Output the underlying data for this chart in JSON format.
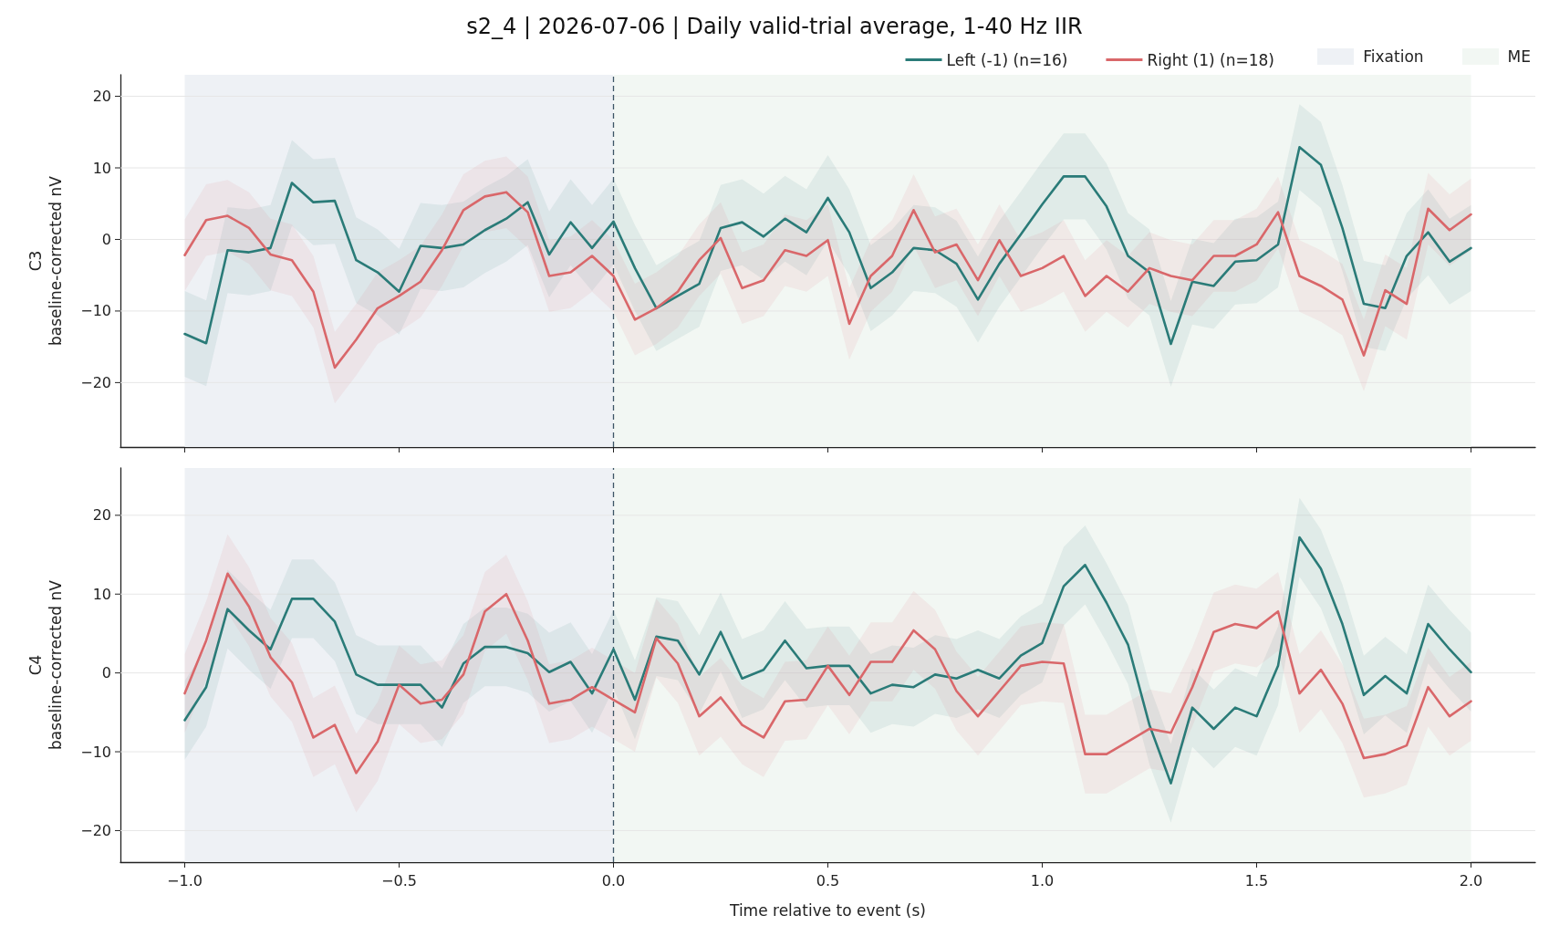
{
  "chart_data": [
    {
      "type": "line",
      "title": "s2_4 | 2026-07-06 | Daily valid-trial average, 1-40 Hz IIR",
      "ylabel": "C3\nbaseline-corrected nV",
      "x": [
        -1,
        -0.95,
        -0.9,
        -0.85,
        -0.8,
        -0.75,
        -0.7,
        -0.65,
        -0.6,
        -0.55,
        -0.5,
        -0.45,
        -0.4,
        -0.35,
        -0.3,
        -0.25,
        -0.2,
        -0.15,
        -0.1,
        -0.05,
        0,
        0.05,
        0.1,
        0.15,
        0.2,
        0.25,
        0.3,
        0.35,
        0.4,
        0.45,
        0.5,
        0.55,
        0.6,
        0.65,
        0.7,
        0.75,
        0.8,
        0.85,
        0.9,
        0.95,
        1,
        1.05,
        1.1,
        1.15,
        1.2,
        1.25,
        1.3,
        1.35,
        1.4,
        1.45,
        1.5,
        1.55,
        1.6,
        1.65,
        1.7,
        1.75,
        1.8,
        1.85,
        1.9,
        1.95,
        2
      ],
      "series": [
        {
          "name": "Left (-1) (n=16)",
          "color": "#2a7b78",
          "values": [
            -13.2,
            -14.5,
            -1.5,
            -1.8,
            -1.2,
            7.9,
            5.2,
            5.4,
            -2.9,
            -4.6,
            -7.3,
            -0.9,
            -1.2,
            -0.7,
            1.3,
            2.9,
            5.2,
            -2.1,
            2.4,
            -1.2,
            2.5,
            -4.0,
            -9.6,
            -7.9,
            -6.2,
            1.6,
            2.4,
            0.4,
            2.9,
            1.0,
            5.8,
            1.0,
            -6.8,
            -4.6,
            -1.2,
            -1.5,
            -3.4,
            -8.4,
            -3.4,
            0.7,
            4.9,
            8.8,
            8.8,
            4.6,
            -2.3,
            -4.6,
            -14.6,
            -5.9,
            -6.5,
            -3.1,
            -2.9,
            -0.7,
            12.9,
            10.4,
            1.6,
            -9.0,
            -9.6,
            -2.3,
            1.0,
            -3.1,
            -1.2
          ],
          "lower": [
            -19.2,
            -20.5,
            -7.5,
            -7.8,
            -7.2,
            1.9,
            -0.8,
            -0.6,
            -8.9,
            -10.6,
            -13.3,
            -6.9,
            -7.2,
            -6.7,
            -4.7,
            -3.1,
            -0.8,
            -8.1,
            -3.6,
            -7.2,
            -3.5,
            -10.0,
            -15.6,
            -13.9,
            -12.2,
            -4.4,
            -3.6,
            -5.6,
            -3.1,
            -5.0,
            -0.2,
            -5.0,
            -12.8,
            -10.6,
            -7.2,
            -7.5,
            -9.4,
            -14.4,
            -9.4,
            -5.3,
            -1.1,
            2.8,
            2.8,
            -1.4,
            -8.3,
            -10.6,
            -20.6,
            -11.9,
            -12.5,
            -9.1,
            -8.9,
            -6.7,
            6.9,
            4.4,
            -4.4,
            -15.0,
            -15.6,
            -8.3,
            -5.0,
            -9.1,
            -7.2
          ],
          "upper": [
            -7.2,
            -8.5,
            4.5,
            4.2,
            4.8,
            13.9,
            11.2,
            11.4,
            3.1,
            1.4,
            -1.3,
            5.1,
            4.8,
            5.3,
            7.3,
            8.9,
            11.2,
            3.9,
            8.4,
            4.8,
            8.5,
            2.0,
            -3.6,
            -1.9,
            -0.2,
            7.6,
            8.4,
            6.4,
            8.9,
            7.0,
            11.8,
            7.0,
            -0.8,
            1.4,
            4.8,
            4.5,
            2.6,
            -2.4,
            2.6,
            6.7,
            10.9,
            14.8,
            14.8,
            10.6,
            3.7,
            1.4,
            -8.6,
            0.1,
            -0.5,
            2.9,
            3.1,
            5.3,
            18.9,
            16.4,
            7.6,
            -3.0,
            -3.6,
            3.7,
            7.0,
            2.9,
            4.8
          ]
        },
        {
          "name": "Right (1) (n=18)",
          "color": "#d9676a",
          "values": [
            -2.2,
            2.7,
            3.3,
            1.6,
            -2.1,
            -2.9,
            -7.3,
            -17.9,
            -14.0,
            -9.6,
            -7.9,
            -5.9,
            -1.5,
            4.1,
            6.0,
            6.6,
            3.8,
            -5.1,
            -4.6,
            -2.3,
            -5.1,
            -11.2,
            -9.6,
            -7.3,
            -2.9,
            0.2,
            -6.8,
            -5.7,
            -1.5,
            -2.3,
            -0.1,
            -11.8,
            -5.1,
            -2.3,
            4.1,
            -1.8,
            -0.7,
            -5.7,
            -0.1,
            -5.1,
            -4.0,
            -2.3,
            -7.9,
            -5.1,
            -7.3,
            -4.0,
            -5.1,
            -5.7,
            -2.3,
            -2.3,
            -0.7,
            3.8,
            -5.1,
            -6.5,
            -8.4,
            -16.2,
            -7.1,
            -9.0,
            4.3,
            1.3,
            3.5
          ],
          "lower": [
            -7.2,
            -2.3,
            -1.7,
            -3.4,
            -7.1,
            -7.9,
            -12.3,
            -22.9,
            -19.0,
            -14.6,
            -12.9,
            -10.9,
            -6.5,
            -0.9,
            1.0,
            1.6,
            -1.2,
            -10.1,
            -9.6,
            -7.3,
            -10.1,
            -16.2,
            -14.6,
            -12.3,
            -7.9,
            -4.8,
            -11.8,
            -10.7,
            -6.5,
            -7.3,
            -5.1,
            -16.8,
            -10.1,
            -7.3,
            -0.9,
            -6.8,
            -5.7,
            -10.7,
            -5.1,
            -10.1,
            -9.0,
            -7.3,
            -12.9,
            -10.1,
            -12.3,
            -9.0,
            -10.1,
            -10.7,
            -7.3,
            -7.3,
            -5.7,
            -1.2,
            -10.1,
            -11.5,
            -13.4,
            -21.2,
            -12.1,
            -14.0,
            -0.7,
            -3.7,
            -1.5
          ],
          "upper": [
            2.8,
            7.7,
            8.3,
            6.6,
            2.9,
            2.1,
            -2.3,
            -12.9,
            -9.0,
            -4.6,
            -2.9,
            -0.9,
            3.5,
            9.1,
            11.0,
            11.6,
            8.8,
            -0.1,
            0.4,
            2.7,
            -0.1,
            -6.2,
            -4.6,
            -2.3,
            2.1,
            5.2,
            -1.8,
            -0.7,
            3.5,
            2.7,
            4.9,
            -6.8,
            -0.1,
            2.7,
            9.1,
            3.2,
            4.3,
            -0.7,
            4.9,
            -0.1,
            1.0,
            2.7,
            -2.9,
            -0.1,
            -2.3,
            1.0,
            -0.1,
            -0.7,
            2.7,
            2.7,
            4.3,
            8.8,
            -0.1,
            -1.5,
            -3.4,
            -11.2,
            -2.1,
            -4.0,
            9.3,
            6.3,
            8.5
          ]
        }
      ],
      "xlim": [
        -1.15,
        2.15
      ],
      "xticks": [
        -1,
        -0.5,
        0,
        0.5,
        1,
        1.5,
        2
      ],
      "ylim": [
        -29,
        23
      ],
      "yticks": [
        -20,
        -10,
        0,
        10,
        20
      ],
      "bands": [
        {
          "axis": "x",
          "from": -1,
          "to": 0,
          "label": "Fixation",
          "color": "#eef1f5"
        },
        {
          "axis": "x",
          "from": 0,
          "to": 2,
          "label": "ME",
          "color": "#f2f7f3"
        }
      ],
      "ref_lines": [
        {
          "axis": "x",
          "value": 0,
          "color": "#3d5566",
          "line_style": "dashed"
        }
      ],
      "grid": "y",
      "legend": "top right",
      "tick_labels": "y"
    },
    {
      "type": "line",
      "xlabel": "Time relative to event (s)",
      "ylabel": "C4\nbaseline-corrected nV",
      "x": [
        -1,
        -0.95,
        -0.9,
        -0.85,
        -0.8,
        -0.75,
        -0.7,
        -0.65,
        -0.6,
        -0.55,
        -0.5,
        -0.45,
        -0.4,
        -0.35,
        -0.3,
        -0.25,
        -0.2,
        -0.15,
        -0.1,
        -0.05,
        0,
        0.05,
        0.1,
        0.15,
        0.2,
        0.25,
        0.3,
        0.35,
        0.4,
        0.45,
        0.5,
        0.55,
        0.6,
        0.65,
        0.7,
        0.75,
        0.8,
        0.85,
        0.9,
        0.95,
        1,
        1.05,
        1.1,
        1.15,
        1.2,
        1.25,
        1.3,
        1.35,
        1.4,
        1.45,
        1.5,
        1.55,
        1.6,
        1.65,
        1.7,
        1.75,
        1.8,
        1.85,
        1.9,
        1.95,
        2
      ],
      "series": [
        {
          "color": "#2a7b78",
          "values": [
            -6.0,
            -1.8,
            8.1,
            5.4,
            3.0,
            9.4,
            9.4,
            6.5,
            -0.2,
            -1.5,
            -1.5,
            -1.5,
            -4.4,
            1.2,
            3.3,
            3.3,
            2.5,
            0.1,
            1.4,
            -2.6,
            3.0,
            -3.4,
            4.6,
            4.1,
            -0.2,
            5.2,
            -0.7,
            0.4,
            4.1,
            0.6,
            0.9,
            0.9,
            -2.6,
            -1.5,
            -1.8,
            -0.2,
            -0.7,
            0.4,
            -0.7,
            2.2,
            3.8,
            11.0,
            13.7,
            8.9,
            3.6,
            -6.6,
            -14.0,
            -4.4,
            -7.1,
            -4.4,
            -5.5,
            0.9,
            17.2,
            13.2,
            6.2,
            -2.8,
            -0.4,
            -2.6,
            6.2,
            3.0,
            0.1
          ],
          "lower": [
            -11.0,
            -6.8,
            3.1,
            0.4,
            -2.0,
            4.4,
            4.4,
            1.5,
            -5.2,
            -6.5,
            -6.5,
            -6.5,
            -9.4,
            -3.8,
            -1.7,
            -1.7,
            -2.5,
            -4.9,
            -3.6,
            -7.6,
            -2.0,
            -8.4,
            -0.4,
            -0.9,
            -5.2,
            0.2,
            -5.7,
            -4.6,
            -0.9,
            -4.4,
            -4.1,
            -4.1,
            -7.6,
            -6.5,
            -6.8,
            -5.2,
            -5.7,
            -4.6,
            -5.7,
            -2.8,
            -1.2,
            6.0,
            8.7,
            3.9,
            -1.4,
            -11.6,
            -19.0,
            -9.4,
            -12.1,
            -9.4,
            -10.5,
            -4.1,
            12.2,
            8.2,
            1.2,
            -7.8,
            -5.4,
            -7.6,
            1.2,
            -2.0,
            -4.9
          ],
          "upper": [
            -1.0,
            3.2,
            13.1,
            10.4,
            8.0,
            14.4,
            14.4,
            11.5,
            4.8,
            3.5,
            3.5,
            3.5,
            0.6,
            6.2,
            8.3,
            8.3,
            7.5,
            5.1,
            6.4,
            2.4,
            8.0,
            1.6,
            9.6,
            9.1,
            4.8,
            10.2,
            4.3,
            5.4,
            9.1,
            5.6,
            5.9,
            5.9,
            2.4,
            3.5,
            3.2,
            4.8,
            4.3,
            5.4,
            4.3,
            7.2,
            8.8,
            16.0,
            18.7,
            13.9,
            8.6,
            -1.6,
            -9.0,
            0.6,
            -2.1,
            0.6,
            -0.5,
            5.9,
            22.2,
            18.2,
            11.2,
            2.2,
            4.6,
            2.4,
            11.2,
            8.0,
            5.1
          ]
        },
        {
          "color": "#d9676a",
          "values": [
            -2.6,
            4.1,
            12.6,
            8.4,
            2.0,
            -1.2,
            -8.2,
            -6.6,
            -12.7,
            -8.7,
            -1.5,
            -3.9,
            -3.4,
            -0.2,
            7.8,
            10.0,
            4.1,
            -3.9,
            -3.4,
            -1.8,
            -3.4,
            -5.0,
            4.4,
            1.2,
            -5.5,
            -3.1,
            -6.6,
            -8.2,
            -3.6,
            -3.4,
            0.9,
            -2.8,
            1.4,
            1.4,
            5.4,
            3.0,
            -2.3,
            -5.5,
            -2.3,
            0.9,
            1.4,
            1.2,
            -10.3,
            -10.3,
            -8.7,
            -7.1,
            -7.6,
            -1.8,
            5.2,
            6.2,
            5.7,
            7.8,
            -2.6,
            0.4,
            -3.9,
            -10.8,
            -10.3,
            -9.2,
            -1.8,
            -5.5,
            -3.6
          ],
          "lower": [
            -7.6,
            -0.9,
            7.6,
            3.4,
            -3.0,
            -6.2,
            -13.2,
            -11.6,
            -17.7,
            -13.7,
            -6.5,
            -8.9,
            -8.4,
            -5.2,
            2.8,
            5.0,
            -0.9,
            -8.9,
            -8.4,
            -6.8,
            -8.4,
            -10.0,
            -0.6,
            -3.8,
            -10.5,
            -8.1,
            -11.6,
            -13.2,
            -8.6,
            -8.4,
            -4.1,
            -7.8,
            -3.6,
            -3.6,
            0.4,
            -2.0,
            -7.3,
            -10.5,
            -7.3,
            -4.1,
            -3.6,
            -3.8,
            -15.3,
            -15.3,
            -13.7,
            -12.1,
            -12.6,
            -6.8,
            0.2,
            1.2,
            0.7,
            2.8,
            -7.6,
            -4.6,
            -8.9,
            -15.8,
            -15.3,
            -14.2,
            -6.8,
            -10.5,
            -8.6
          ],
          "upper": [
            2.4,
            9.1,
            17.6,
            13.4,
            7.0,
            3.8,
            -3.2,
            -1.6,
            -7.7,
            -3.7,
            3.5,
            1.1,
            1.6,
            4.8,
            12.8,
            15.0,
            9.1,
            1.1,
            1.6,
            3.2,
            1.6,
            0.0,
            9.4,
            6.2,
            -0.5,
            1.9,
            -1.6,
            -3.2,
            1.4,
            1.6,
            5.9,
            2.2,
            6.4,
            6.4,
            10.4,
            8.0,
            2.7,
            -0.5,
            2.7,
            5.9,
            6.4,
            6.2,
            -5.3,
            -5.3,
            -3.7,
            -2.1,
            -2.6,
            3.2,
            10.2,
            11.2,
            10.7,
            12.8,
            2.4,
            5.4,
            1.1,
            -5.8,
            -5.3,
            -4.2,
            3.2,
            -0.5,
            1.4
          ]
        }
      ],
      "xlim": [
        -1.15,
        2.15
      ],
      "xticks": [
        {
          "value": -1,
          "label": "−1.0"
        },
        {
          "value": -0.5,
          "label": "−0.5"
        },
        {
          "value": 0,
          "label": "0.0"
        },
        {
          "value": 0.5,
          "label": "0.5"
        },
        {
          "value": 1,
          "label": "1.0"
        },
        {
          "value": 1.5,
          "label": "1.5"
        },
        {
          "value": 2,
          "label": "2.0"
        }
      ],
      "ylim": [
        -24,
        26
      ],
      "yticks": [
        -20,
        -10,
        0,
        10,
        20
      ],
      "bands": [
        {
          "axis": "x",
          "from": -1,
          "to": 0,
          "color": "#eef1f5"
        },
        {
          "axis": "x",
          "from": 0,
          "to": 2,
          "color": "#f2f7f3"
        }
      ],
      "ref_lines": [
        {
          "axis": "x",
          "value": 0,
          "color": "#3d5566",
          "line_style": "dashed"
        }
      ],
      "grid": "y"
    }
  ]
}
